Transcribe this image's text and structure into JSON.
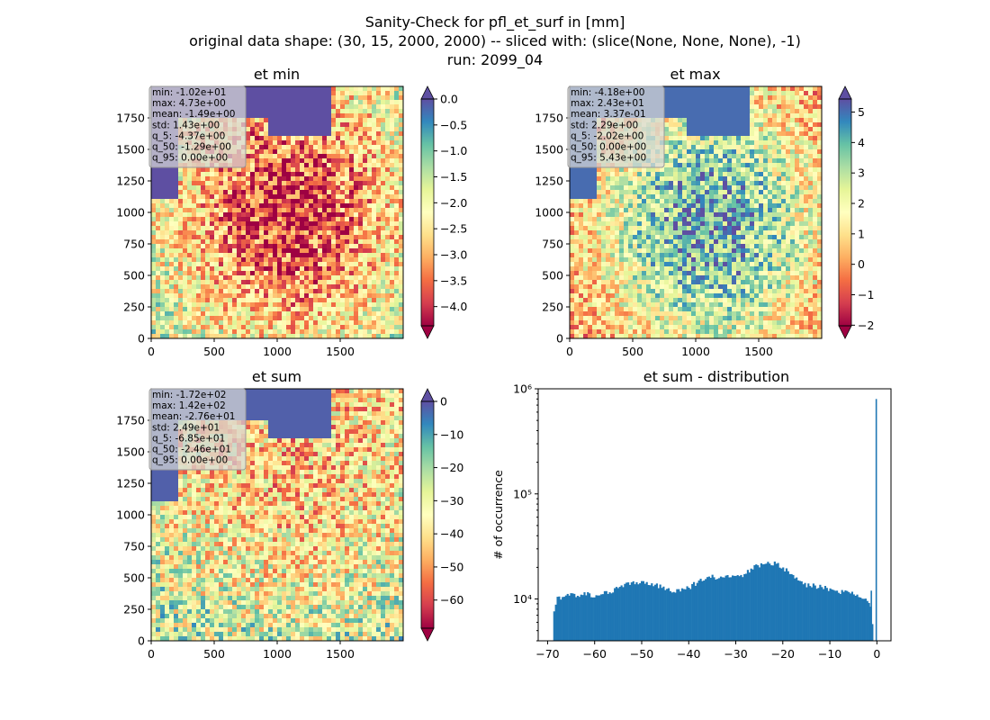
{
  "figure": {
    "title_lines": [
      "Sanity-Check for pfl_et_surf in [mm]",
      "original data shape: (30, 15, 2000, 2000) -- sliced with: (slice(None, None, None), -1)",
      "run: 2099_04"
    ]
  },
  "colormap": "Spectral",
  "chart_data": [
    {
      "type": "heatmap",
      "title": "et min",
      "x_ticks": [
        "0",
        "500",
        "1000",
        "1500"
      ],
      "y_ticks": [
        "0",
        "250",
        "500",
        "750",
        "1000",
        "1250",
        "1500",
        "1750"
      ],
      "extent": [
        0,
        2000,
        0,
        2000
      ],
      "colorbar": {
        "vmin": -4.37,
        "vmax": 0.0,
        "extend": "both",
        "ticks": [
          -4.0,
          -3.5,
          -3.0,
          -2.5,
          -2.0,
          -1.5,
          -1.0,
          -0.5,
          0.0
        ],
        "tick_labels": [
          "−4.0",
          "−3.5",
          "−3.0",
          "−2.5",
          "−2.0",
          "−1.5",
          "−1.0",
          "−0.5",
          "0.0"
        ]
      },
      "stats": [
        "min: -1.02e+01",
        "max: 4.73e+00",
        "mean: -1.49e+00",
        "std: 1.43e+00",
        "q_5: -4.37e+00",
        "q_50: -1.29e+00",
        "q_95: 0.00e+00"
      ]
    },
    {
      "type": "heatmap",
      "title": "et max",
      "x_ticks": [
        "0",
        "500",
        "1000",
        "1500"
      ],
      "y_ticks": [
        "0",
        "250",
        "500",
        "750",
        "1000",
        "1250",
        "1500",
        "1750"
      ],
      "extent": [
        0,
        2000,
        0,
        2000
      ],
      "colorbar": {
        "vmin": -2.02,
        "vmax": 5.43,
        "extend": "both",
        "ticks": [
          -2,
          -1,
          0,
          1,
          2,
          3,
          4,
          5
        ],
        "tick_labels": [
          "−2",
          "−1",
          "0",
          "1",
          "2",
          "3",
          "4",
          "5"
        ]
      },
      "stats": [
        "min: -4.18e+00",
        "max: 2.43e+01",
        "mean: 3.37e-01",
        "std: 2.29e+00",
        "q_5: -2.02e+00",
        "q_50: 0.00e+00",
        "q_95: 5.43e+00"
      ]
    },
    {
      "type": "heatmap",
      "title": "et sum",
      "x_ticks": [
        "0",
        "500",
        "1000",
        "1500"
      ],
      "y_ticks": [
        "0",
        "250",
        "500",
        "750",
        "1000",
        "1250",
        "1500",
        "1750"
      ],
      "extent": [
        0,
        2000,
        0,
        2000
      ],
      "colorbar": {
        "vmin": -68.5,
        "vmax": 0.0,
        "extend": "both",
        "ticks": [
          -60,
          -50,
          -40,
          -30,
          -20,
          -10,
          0
        ],
        "tick_labels": [
          "−60",
          "−50",
          "−40",
          "−30",
          "−20",
          "−10",
          "0"
        ]
      },
      "stats": [
        "min: -1.72e+02",
        "max: 1.42e+02",
        "mean: -2.76e+01",
        "std: 2.49e+01",
        "q_5: -6.85e+01",
        "q_50: -2.46e+01",
        "q_95: 0.00e+00"
      ]
    },
    {
      "type": "bar",
      "title": "et sum - distribution",
      "ylabel": "# of occurrence",
      "xlabel": "",
      "yscale": "log",
      "xlim": [
        -72,
        3
      ],
      "ylim": [
        4000,
        1000000
      ],
      "x_ticks": [
        -70,
        -60,
        -50,
        -40,
        -30,
        -20,
        -10,
        0
      ],
      "x_tick_labels": [
        "−70",
        "−60",
        "−50",
        "−40",
        "−30",
        "−20",
        "−10",
        "0"
      ],
      "y_ticks": [
        10000,
        100000,
        1000000
      ],
      "y_tick_labels": [
        "10⁴",
        "10⁵",
        "10⁶"
      ],
      "bar_color": "#1f77b4",
      "profile": [
        {
          "x": -68.8,
          "count": 7000
        },
        {
          "x": -68.0,
          "count": 10000
        },
        {
          "x": -65.0,
          "count": 10800
        },
        {
          "x": -62.0,
          "count": 11200
        },
        {
          "x": -59.0,
          "count": 10800
        },
        {
          "x": -56.0,
          "count": 12200
        },
        {
          "x": -53.0,
          "count": 14000
        },
        {
          "x": -50.0,
          "count": 14500
        },
        {
          "x": -47.0,
          "count": 13500
        },
        {
          "x": -44.0,
          "count": 12200
        },
        {
          "x": -41.0,
          "count": 12000
        },
        {
          "x": -38.0,
          "count": 14500
        },
        {
          "x": -35.0,
          "count": 16200
        },
        {
          "x": -32.0,
          "count": 16000
        },
        {
          "x": -29.0,
          "count": 16500
        },
        {
          "x": -26.0,
          "count": 20000
        },
        {
          "x": -23.0,
          "count": 22500
        },
        {
          "x": -21.0,
          "count": 21000
        },
        {
          "x": -18.0,
          "count": 17000
        },
        {
          "x": -15.0,
          "count": 13500
        },
        {
          "x": -12.0,
          "count": 13000
        },
        {
          "x": -9.0,
          "count": 12000
        },
        {
          "x": -6.0,
          "count": 11500
        },
        {
          "x": -3.0,
          "count": 10500
        },
        {
          "x": -1.5,
          "count": 9500
        },
        {
          "x": -0.8,
          "count": 5000
        }
      ],
      "spikes": [
        {
          "x": -1.2,
          "count": 12000
        },
        {
          "x": -0.15,
          "count": 800000
        }
      ]
    }
  ]
}
